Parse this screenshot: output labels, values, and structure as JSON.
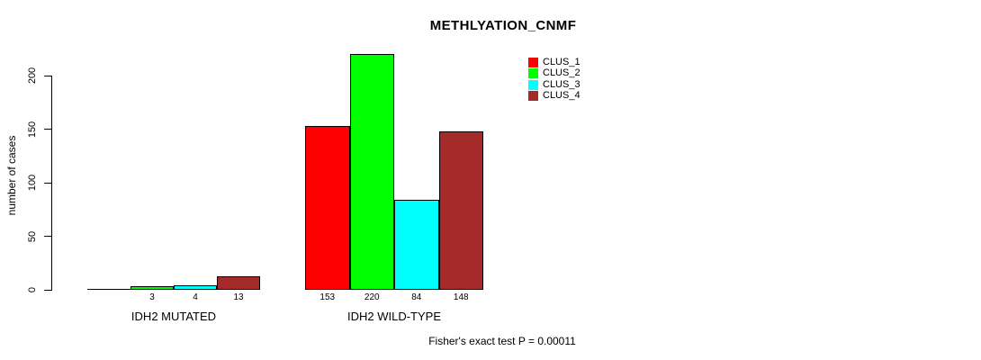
{
  "chart_data": {
    "type": "bar",
    "title": "METHLYATION_CNMF",
    "ylabel": "number of cases",
    "xlabel": "",
    "yticks": [
      0,
      50,
      100,
      150,
      200
    ],
    "ylim": [
      0,
      220
    ],
    "grid": false,
    "legend_position": "top-right",
    "categories": [
      "IDH2 MUTATED",
      "IDH2 WILD-TYPE"
    ],
    "series": [
      {
        "name": "CLUS_1",
        "color": "#ff0000",
        "values": [
          0,
          153
        ]
      },
      {
        "name": "CLUS_2",
        "color": "#00ff00",
        "values": [
          3,
          220
        ]
      },
      {
        "name": "CLUS_3",
        "color": "#00ffff",
        "values": [
          4,
          84
        ]
      },
      {
        "name": "CLUS_4",
        "color": "#a52a2a",
        "values": [
          13,
          148
        ]
      }
    ],
    "value_labels": [
      [
        "",
        "3",
        "4",
        "13"
      ],
      [
        "153",
        "220",
        "84",
        "148"
      ]
    ],
    "annotation": "Fisher's exact test P = 0.00011"
  }
}
